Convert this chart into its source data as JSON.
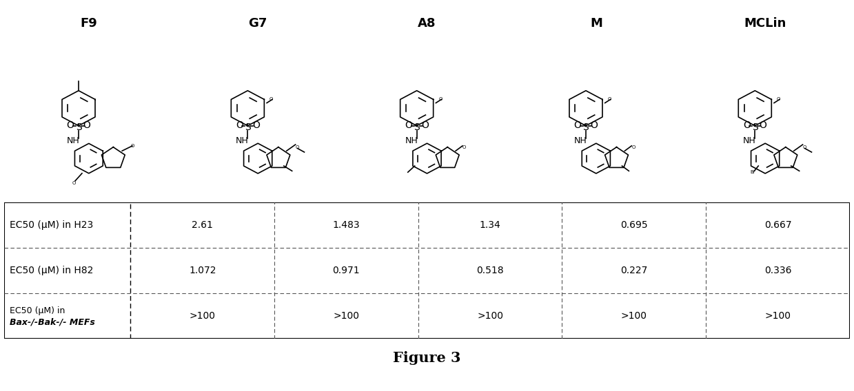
{
  "compound_labels": [
    "F9",
    "G7",
    "A8",
    "M",
    "MCLin"
  ],
  "row_labels_line1": [
    "EC50 (μM) in H23",
    "EC50 (μM) in H82",
    "EC50 (μM) in"
  ],
  "row_labels_line2": [
    "",
    "",
    "Bax-/-Bak-/- MEFs"
  ],
  "table_data": [
    [
      "2.61",
      "1.483",
      "1.34",
      "0.695",
      "0.667"
    ],
    [
      "1.072",
      "0.971",
      "0.518",
      "0.227",
      "0.336"
    ],
    [
      ">100",
      ">100",
      ">100",
      ">100",
      ">100"
    ]
  ],
  "figure_caption": "Figure 3",
  "bg_color": "#ffffff",
  "text_color": "#000000",
  "border_color": "#000000",
  "dashed_color": "#666666",
  "col_header_fontsize": 13,
  "row_label_fontsize": 9,
  "cell_fontsize": 10,
  "caption_fontsize": 15,
  "struct_lw": 1.2
}
